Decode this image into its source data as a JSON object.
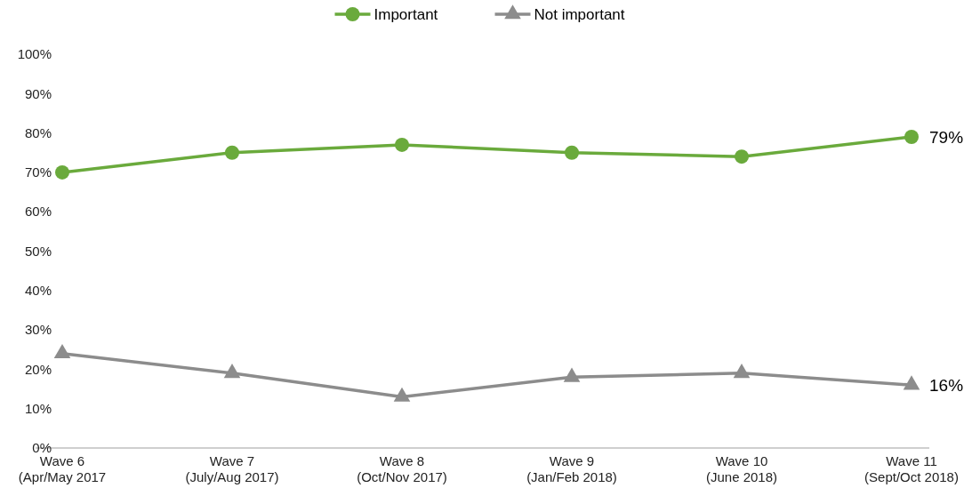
{
  "chart_data": {
    "type": "line",
    "categories": [
      "Wave 6\n(Apr/May 2017",
      "Wave 7\n(July/Aug 2017)",
      "Wave 8\n(Oct/Nov 2017)",
      "Wave 9\n(Jan/Feb 2018)",
      "Wave 10\n(June 2018)",
      "Wave 11\n(Sept/Oct 2018)"
    ],
    "series": [
      {
        "name": "Important",
        "color": "#6aaa3c",
        "marker": "circle",
        "values": [
          70,
          75,
          77,
          75,
          74,
          79
        ],
        "value_labels": [
          null,
          null,
          null,
          null,
          null,
          "79%"
        ]
      },
      {
        "name": "Not important",
        "color": "#8c8c8c",
        "marker": "triangle",
        "values": [
          24,
          19,
          13,
          18,
          19,
          16
        ],
        "value_labels": [
          null,
          null,
          null,
          null,
          null,
          "16%"
        ]
      }
    ],
    "ylim": [
      0,
      100
    ],
    "yticks": [
      {
        "value": 0,
        "label": "0%"
      },
      {
        "value": 10,
        "label": "10%"
      },
      {
        "value": 20,
        "label": "20%"
      },
      {
        "value": 30,
        "label": "30%"
      },
      {
        "value": 40,
        "label": "40%"
      },
      {
        "value": 50,
        "label": "50%"
      },
      {
        "value": 60,
        "label": "60%"
      },
      {
        "value": 70,
        "label": "70%"
      },
      {
        "value": 80,
        "label": "80%"
      },
      {
        "value": 90,
        "label": "90%"
      },
      {
        "value": 100,
        "label": "100%"
      }
    ],
    "grid": false,
    "legend": "top",
    "line_style": "solid"
  }
}
